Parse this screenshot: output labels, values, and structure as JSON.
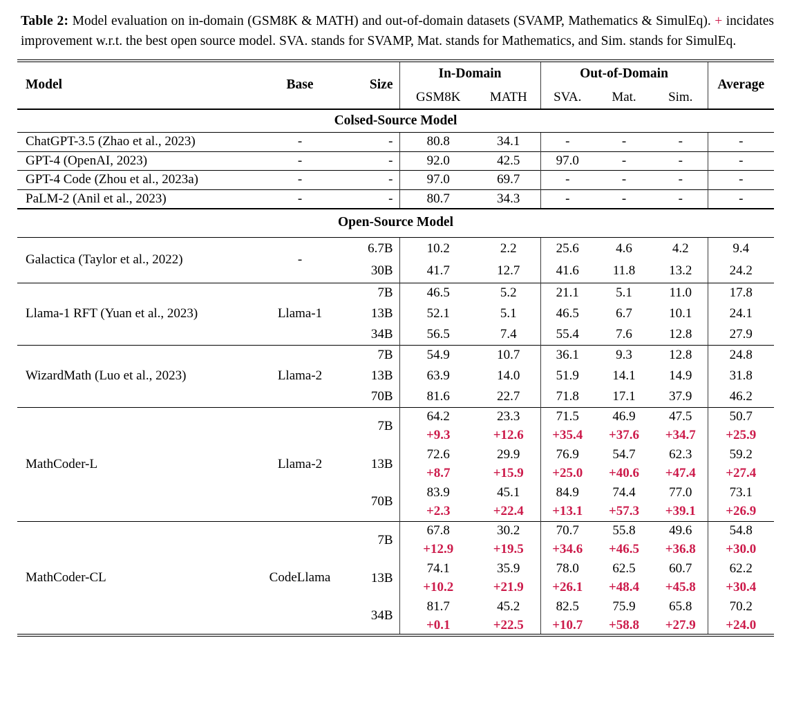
{
  "caption": {
    "label": "Table 2:",
    "text_before_plus": "  Model evaluation on in-domain (GSM8K & MATH) and out-of-domain datasets (SVAMP, Mathematics & SimulEq). ",
    "plus": "+",
    "text_after_plus": " incidates improvement w.r.t. the best open source model. SVA. stands for SVAMP, Mat. stands for Mathematics, and Sim. stands for SimulEq."
  },
  "colors": {
    "improvement_red": "#cc1a4a",
    "text": "#000000",
    "background": "#ffffff"
  },
  "table": {
    "headers": {
      "model": "Model",
      "base": "Base",
      "size": "Size",
      "in_domain": "In-Domain",
      "out_of_domain": "Out-of-Domain",
      "average": "Average",
      "sub": [
        "GSM8K",
        "MATH",
        "SVA.",
        "Mat.",
        "Sim."
      ]
    },
    "sections": [
      {
        "title": "Colsed-Source Model",
        "groups": [
          {
            "model": "ChatGPT-3.5 (Zhao et al., 2023)",
            "base": "-",
            "rows": [
              {
                "size": "-",
                "values": [
                  "80.8",
                  "34.1",
                  "-",
                  "-",
                  "-",
                  "-"
                ]
              }
            ]
          },
          {
            "model": "GPT-4 (OpenAI, 2023)",
            "base": "-",
            "rows": [
              {
                "size": "-",
                "values": [
                  "92.0",
                  "42.5",
                  "97.0",
                  "-",
                  "-",
                  "-"
                ]
              }
            ]
          },
          {
            "model": "GPT-4 Code (Zhou et al., 2023a)",
            "base": "-",
            "rows": [
              {
                "size": "-",
                "values": [
                  "97.0",
                  "69.7",
                  "-",
                  "-",
                  "-",
                  "-"
                ]
              }
            ]
          },
          {
            "model": "PaLM-2 (Anil et al., 2023)",
            "base": "-",
            "rows": [
              {
                "size": "-",
                "values": [
                  "80.7",
                  "34.3",
                  "-",
                  "-",
                  "-",
                  "-"
                ]
              }
            ]
          }
        ]
      },
      {
        "title": "Open-Source Model",
        "groups": [
          {
            "model": "Galactica (Taylor et al., 2022)",
            "base": "-",
            "rows": [
              {
                "size": "6.7B",
                "values": [
                  "10.2",
                  "2.2",
                  "25.6",
                  "4.6",
                  "4.2",
                  "9.4"
                ]
              },
              {
                "size": "30B",
                "values": [
                  "41.7",
                  "12.7",
                  "41.6",
                  "11.8",
                  "13.2",
                  "24.2"
                ]
              }
            ]
          },
          {
            "model": "Llama-1 RFT (Yuan et al., 2023)",
            "base": "Llama-1",
            "rows": [
              {
                "size": "7B",
                "values": [
                  "46.5",
                  "5.2",
                  "21.1",
                  "5.1",
                  "11.0",
                  "17.8"
                ]
              },
              {
                "size": "13B",
                "values": [
                  "52.1",
                  "5.1",
                  "46.5",
                  "6.7",
                  "10.1",
                  "24.1"
                ]
              },
              {
                "size": "34B",
                "values": [
                  "56.5",
                  "7.4",
                  "55.4",
                  "7.6",
                  "12.8",
                  "27.9"
                ]
              }
            ]
          },
          {
            "model": "WizardMath (Luo et al., 2023)",
            "base": "Llama-2",
            "rows": [
              {
                "size": "7B",
                "values": [
                  "54.9",
                  "10.7",
                  "36.1",
                  "9.3",
                  "12.8",
                  "24.8"
                ]
              },
              {
                "size": "13B",
                "values": [
                  "63.9",
                  "14.0",
                  "51.9",
                  "14.1",
                  "14.9",
                  "31.8"
                ]
              },
              {
                "size": "70B",
                "values": [
                  "81.6",
                  "22.7",
                  "71.8",
                  "17.1",
                  "37.9",
                  "46.2"
                ]
              }
            ]
          },
          {
            "model": "MathCoder-L",
            "base": "Llama-2",
            "rows": [
              {
                "size": "7B",
                "values": [
                  "64.2",
                  "23.3",
                  "71.5",
                  "46.9",
                  "47.5",
                  "50.7"
                ],
                "improvement": [
                  "+9.3",
                  "+12.6",
                  "+35.4",
                  "+37.6",
                  "+34.7",
                  "+25.9"
                ]
              },
              {
                "size": "13B",
                "values": [
                  "72.6",
                  "29.9",
                  "76.9",
                  "54.7",
                  "62.3",
                  "59.2"
                ],
                "improvement": [
                  "+8.7",
                  "+15.9",
                  "+25.0",
                  "+40.6",
                  "+47.4",
                  "+27.4"
                ]
              },
              {
                "size": "70B",
                "values": [
                  "83.9",
                  "45.1",
                  "84.9",
                  "74.4",
                  "77.0",
                  "73.1"
                ],
                "improvement": [
                  "+2.3",
                  "+22.4",
                  "+13.1",
                  "+57.3",
                  "+39.1",
                  "+26.9"
                ]
              }
            ]
          },
          {
            "model": "MathCoder-CL",
            "base": "CodeLlama",
            "rows": [
              {
                "size": "7B",
                "values": [
                  "67.8",
                  "30.2",
                  "70.7",
                  "55.8",
                  "49.6",
                  "54.8"
                ],
                "improvement": [
                  "+12.9",
                  "+19.5",
                  "+34.6",
                  "+46.5",
                  "+36.8",
                  "+30.0"
                ]
              },
              {
                "size": "13B",
                "values": [
                  "74.1",
                  "35.9",
                  "78.0",
                  "62.5",
                  "60.7",
                  "62.2"
                ],
                "improvement": [
                  "+10.2",
                  "+21.9",
                  "+26.1",
                  "+48.4",
                  "+45.8",
                  "+30.4"
                ]
              },
              {
                "size": "34B",
                "values": [
                  "81.7",
                  "45.2",
                  "82.5",
                  "75.9",
                  "65.8",
                  "70.2"
                ],
                "improvement": [
                  "+0.1",
                  "+22.5",
                  "+10.7",
                  "+58.8",
                  "+27.9",
                  "+24.0"
                ]
              }
            ]
          }
        ]
      }
    ]
  }
}
